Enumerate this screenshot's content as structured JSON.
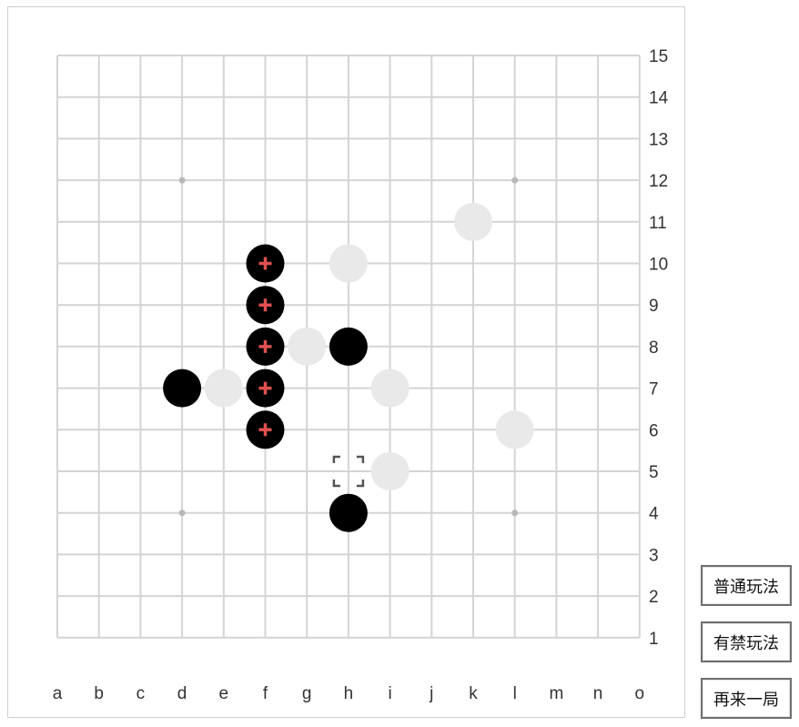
{
  "board": {
    "columns": [
      "a",
      "b",
      "c",
      "d",
      "e",
      "f",
      "g",
      "h",
      "i",
      "j",
      "k",
      "l",
      "m",
      "n",
      "o"
    ],
    "rows": [
      "1",
      "2",
      "3",
      "4",
      "5",
      "6",
      "7",
      "8",
      "9",
      "10",
      "11",
      "12",
      "13",
      "14",
      "15"
    ],
    "star_points": [
      "d12",
      "l12",
      "d4",
      "l4"
    ],
    "colors": {
      "grid": "#d4d4d4",
      "black_stone": "#000000",
      "white_stone": "#e9e9e9",
      "win_marker": "#e05050",
      "star": "#b8b8b8",
      "cursor": "#555555",
      "label": "#333333"
    },
    "stones": [
      {
        "pos": "f10",
        "color": "black",
        "winning": true
      },
      {
        "pos": "f9",
        "color": "black",
        "winning": true
      },
      {
        "pos": "f8",
        "color": "black",
        "winning": true
      },
      {
        "pos": "f7",
        "color": "black",
        "winning": true
      },
      {
        "pos": "f6",
        "color": "black",
        "winning": true
      },
      {
        "pos": "d7",
        "color": "black",
        "winning": false
      },
      {
        "pos": "h8",
        "color": "black",
        "winning": false
      },
      {
        "pos": "h4",
        "color": "black",
        "winning": false
      },
      {
        "pos": "k11",
        "color": "white",
        "winning": false
      },
      {
        "pos": "h10",
        "color": "white",
        "winning": false
      },
      {
        "pos": "g8",
        "color": "white",
        "winning": false
      },
      {
        "pos": "e7",
        "color": "white",
        "winning": false
      },
      {
        "pos": "i7",
        "color": "white",
        "winning": false
      },
      {
        "pos": "l6",
        "color": "white",
        "winning": false
      },
      {
        "pos": "i5",
        "color": "white",
        "winning": false
      }
    ],
    "cursor": "h5"
  },
  "controls": {
    "normal_mode_label": "普通玩法",
    "forbidden_mode_label": "有禁玩法",
    "restart_label": "再来一局"
  }
}
